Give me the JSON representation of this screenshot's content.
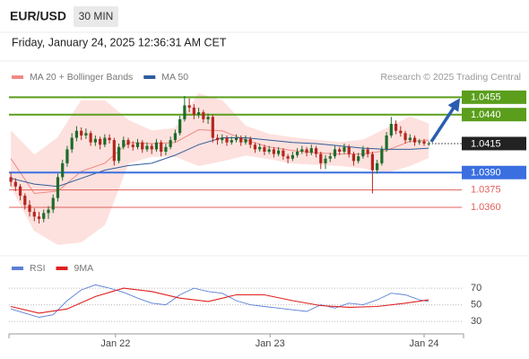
{
  "header": {
    "symbol": "EUR/USD",
    "interval": "30 MIN",
    "timestamp": "Friday, January 24, 2025 12:36:31 AM CET"
  },
  "chart_data": [
    {
      "type": "candlestick",
      "source": "Research © 2025 Trading Central",
      "up_color": "#1e6b2a",
      "down_color": "#b3261e",
      "xlim": [
        -0.4,
        96.4
      ],
      "ylim": [
        1.0322,
        1.0463
      ],
      "ohlc": [
        [
          1.0386,
          1.039,
          1.0378,
          1.0382
        ],
        [
          1.0382,
          1.0385,
          1.0374,
          1.0378
        ],
        [
          1.0378,
          1.038,
          1.0366,
          1.037
        ],
        [
          1.037,
          1.0372,
          1.0358,
          1.0362
        ],
        [
          1.0362,
          1.0366,
          1.0352,
          1.0356
        ],
        [
          1.0356,
          1.0359,
          1.0348,
          1.0352
        ],
        [
          1.0352,
          1.0356,
          1.0346,
          1.035
        ],
        [
          1.035,
          1.0358,
          1.0347,
          1.0355
        ],
        [
          1.0355,
          1.0361,
          1.035,
          1.0358
        ],
        [
          1.0358,
          1.0371,
          1.0355,
          1.0368
        ],
        [
          1.0368,
          1.0389,
          1.0365,
          1.0386
        ],
        [
          1.0386,
          1.0401,
          1.0383,
          1.0398
        ],
        [
          1.0398,
          1.0413,
          1.0395,
          1.041
        ],
        [
          1.041,
          1.0424,
          1.0407,
          1.042
        ],
        [
          1.042,
          1.043,
          1.0417,
          1.0426
        ],
        [
          1.0426,
          1.0429,
          1.0418,
          1.0422
        ],
        [
          1.0422,
          1.0428,
          1.0419,
          1.0424
        ],
        [
          1.0424,
          1.0426,
          1.0413,
          1.0416
        ],
        [
          1.0416,
          1.0422,
          1.0413,
          1.0419
        ],
        [
          1.0419,
          1.0421,
          1.041,
          1.0414
        ],
        [
          1.0414,
          1.0423,
          1.0412,
          1.042
        ],
        [
          1.042,
          1.0423,
          1.0415,
          1.0418
        ],
        [
          1.0418,
          1.042,
          1.0396,
          1.04
        ],
        [
          1.04,
          1.0415,
          1.0398,
          1.0412
        ],
        [
          1.0412,
          1.0421,
          1.041,
          1.0418
        ],
        [
          1.0418,
          1.042,
          1.0411,
          1.0414
        ],
        [
          1.0414,
          1.0417,
          1.0409,
          1.0412
        ],
        [
          1.0412,
          1.0419,
          1.041,
          1.0416
        ],
        [
          1.0416,
          1.0418,
          1.0407,
          1.041
        ],
        [
          1.041,
          1.0416,
          1.0408,
          1.0413
        ],
        [
          1.0413,
          1.0415,
          1.0406,
          1.041
        ],
        [
          1.041,
          1.0419,
          1.0408,
          1.0416
        ],
        [
          1.0416,
          1.0418,
          1.0404,
          1.0408
        ],
        [
          1.0408,
          1.0415,
          1.0405,
          1.0412
        ],
        [
          1.0412,
          1.0421,
          1.041,
          1.0418
        ],
        [
          1.0418,
          1.0427,
          1.0416,
          1.0424
        ],
        [
          1.0424,
          1.0439,
          1.0422,
          1.0436
        ],
        [
          1.0436,
          1.0456,
          1.0434,
          1.0448
        ],
        [
          1.0448,
          1.0454,
          1.0442,
          1.0446
        ],
        [
          1.0446,
          1.0449,
          1.0436,
          1.044
        ],
        [
          1.044,
          1.0446,
          1.0437,
          1.0442
        ],
        [
          1.0442,
          1.0444,
          1.0433,
          1.0436
        ],
        [
          1.0436,
          1.0441,
          1.0432,
          1.0438
        ],
        [
          1.0438,
          1.044,
          1.0416,
          1.042
        ],
        [
          1.042,
          1.0423,
          1.0414,
          1.0418
        ],
        [
          1.0418,
          1.0423,
          1.0415,
          1.042
        ],
        [
          1.042,
          1.0422,
          1.0413,
          1.0416
        ],
        [
          1.0416,
          1.0421,
          1.0414,
          1.0418
        ],
        [
          1.0418,
          1.0423,
          1.0416,
          1.042
        ],
        [
          1.042,
          1.0422,
          1.0413,
          1.0416
        ],
        [
          1.0416,
          1.0422,
          1.0414,
          1.0419
        ],
        [
          1.0419,
          1.0421,
          1.0411,
          1.0414
        ],
        [
          1.0414,
          1.0416,
          1.0407,
          1.041
        ],
        [
          1.041,
          1.0415,
          1.0408,
          1.0412
        ],
        [
          1.0412,
          1.0414,
          1.0405,
          1.0408
        ],
        [
          1.0408,
          1.0413,
          1.0406,
          1.041
        ],
        [
          1.041,
          1.0412,
          1.0403,
          1.0406
        ],
        [
          1.0406,
          1.0412,
          1.0404,
          1.0409
        ],
        [
          1.0409,
          1.0411,
          1.0401,
          1.0404
        ],
        [
          1.0404,
          1.0406,
          1.0398,
          1.0402
        ],
        [
          1.0402,
          1.0408,
          1.04,
          1.0405
        ],
        [
          1.0405,
          1.0411,
          1.0403,
          1.0408
        ],
        [
          1.0408,
          1.0413,
          1.0406,
          1.041
        ],
        [
          1.041,
          1.0412,
          1.0404,
          1.0407
        ],
        [
          1.0407,
          1.0414,
          1.0405,
          1.0411
        ],
        [
          1.0411,
          1.0413,
          1.0403,
          1.0406
        ],
        [
          1.0406,
          1.0408,
          1.0393,
          1.0398
        ],
        [
          1.0398,
          1.0405,
          1.0393,
          1.0402
        ],
        [
          1.0402,
          1.0407,
          1.0399,
          1.0404
        ],
        [
          1.0404,
          1.0413,
          1.0402,
          1.041
        ],
        [
          1.041,
          1.0412,
          1.0405,
          1.0408
        ],
        [
          1.0408,
          1.0415,
          1.0406,
          1.0412
        ],
        [
          1.0412,
          1.0414,
          1.0403,
          1.0406
        ],
        [
          1.0406,
          1.0408,
          1.0396,
          1.04
        ],
        [
          1.04,
          1.0407,
          1.0398,
          1.0404
        ],
        [
          1.0404,
          1.0413,
          1.0402,
          1.041
        ],
        [
          1.041,
          1.0412,
          1.0403,
          1.0406
        ],
        [
          1.0406,
          1.0408,
          1.0372,
          1.0392
        ],
        [
          1.0392,
          1.0401,
          1.0389,
          1.0398
        ],
        [
          1.0398,
          1.0413,
          1.0396,
          1.041
        ],
        [
          1.041,
          1.0425,
          1.0408,
          1.0422
        ],
        [
          1.0422,
          1.0438,
          1.042,
          1.0432
        ],
        [
          1.0432,
          1.0435,
          1.0423,
          1.0426
        ],
        [
          1.0426,
          1.043,
          1.0421,
          1.0424
        ],
        [
          1.0424,
          1.0426,
          1.0415,
          1.0418
        ],
        [
          1.0418,
          1.0423,
          1.0416,
          1.042
        ],
        [
          1.042,
          1.0422,
          1.0413,
          1.0416
        ],
        [
          1.0416,
          1.0419,
          1.0414,
          1.0417
        ],
        [
          1.0417,
          1.0419,
          1.0413,
          1.0415
        ],
        [
          1.0415,
          1.0417,
          1.0413,
          1.0415
        ]
      ],
      "series": [
        {
          "name": "MA 20 + Bollinger Bands",
          "color": "#f08a84",
          "band_color": "#fde1de",
          "x": [
            0,
            5,
            10,
            15,
            20,
            25,
            30,
            35,
            40,
            45,
            50,
            55,
            60,
            65,
            70,
            75,
            80,
            85,
            89
          ],
          "values": [
            1.0402,
            1.0372,
            1.0374,
            1.0391,
            1.0398,
            1.0416,
            1.0415,
            1.0416,
            1.0427,
            1.0426,
            1.0418,
            1.0412,
            1.0409,
            1.0407,
            1.0406,
            1.0406,
            1.0409,
            1.0417,
            1.0418
          ],
          "upper": [
            1.0426,
            1.0405,
            1.042,
            1.0452,
            1.0452,
            1.0435,
            1.0426,
            1.0428,
            1.0458,
            1.0452,
            1.043,
            1.0423,
            1.042,
            1.0418,
            1.0416,
            1.0418,
            1.0428,
            1.0438,
            1.0432
          ],
          "lower": [
            1.0378,
            1.034,
            1.0328,
            1.033,
            1.0345,
            1.0398,
            1.0404,
            1.0404,
            1.0396,
            1.04,
            1.0405,
            1.0402,
            1.0398,
            1.0397,
            1.0396,
            1.0394,
            1.039,
            1.0396,
            1.0403
          ]
        },
        {
          "name": "MA 50",
          "color": "#2f5d9b",
          "x": [
            0,
            5,
            10,
            15,
            20,
            25,
            30,
            35,
            40,
            45,
            50,
            55,
            60,
            65,
            70,
            75,
            80,
            85,
            89
          ],
          "values": [
            1.0385,
            1.038,
            1.0378,
            1.0385,
            1.0392,
            1.0396,
            1.0398,
            1.0405,
            1.0414,
            1.042,
            1.042,
            1.0418,
            1.0416,
            1.0415,
            1.0413,
            1.0411,
            1.041,
            1.041,
            1.0411
          ]
        }
      ],
      "levels": [
        {
          "value": 1.0455,
          "label": "1.0455",
          "color": "#5a9e1c",
          "style": "box"
        },
        {
          "value": 1.044,
          "label": "1.0440",
          "color": "#5a9e1c",
          "style": "box"
        },
        {
          "value": 1.0415,
          "label": "1.0415",
          "color": "#222222",
          "style": "current"
        },
        {
          "value": 1.039,
          "label": "1.0390",
          "color": "#3b6fe0",
          "style": "box"
        },
        {
          "value": 1.0375,
          "label": "1.0375",
          "color": "#e0605a",
          "style": "text"
        },
        {
          "value": 1.036,
          "label": "1.0360",
          "color": "#e0605a",
          "style": "text"
        }
      ]
    },
    {
      "type": "line",
      "xlim": [
        -0.4,
        96.4
      ],
      "ylim": [
        15,
        82
      ],
      "yticks": [
        70,
        50,
        30
      ],
      "grid": true,
      "xticks": [
        {
          "value": 22.3,
          "label": "Jan 22"
        },
        {
          "value": 55.2,
          "label": "Jan 23"
        },
        {
          "value": 88,
          "label": "Jan 24"
        }
      ],
      "series": [
        {
          "name": "RSI",
          "color": "#5b7fd6",
          "x": [
            0,
            3,
            6,
            9,
            12,
            15,
            18,
            21,
            24,
            27,
            30,
            33,
            36,
            39,
            42,
            45,
            48,
            51,
            54,
            57,
            60,
            63,
            66,
            69,
            72,
            75,
            78,
            81,
            84,
            87,
            89
          ],
          "values": [
            45,
            40,
            35,
            38,
            55,
            68,
            74,
            70,
            65,
            58,
            52,
            50,
            62,
            70,
            66,
            64,
            55,
            50,
            48,
            46,
            44,
            42,
            50,
            46,
            52,
            50,
            56,
            64,
            62,
            56,
            54
          ]
        },
        {
          "name": "9MA",
          "color": "#e02020",
          "x": [
            0,
            6,
            12,
            18,
            24,
            30,
            36,
            42,
            48,
            54,
            60,
            66,
            72,
            78,
            84,
            89
          ],
          "values": [
            48,
            40,
            45,
            60,
            70,
            66,
            58,
            54,
            62,
            62,
            55,
            49,
            47,
            48,
            52,
            56
          ]
        }
      ]
    }
  ]
}
